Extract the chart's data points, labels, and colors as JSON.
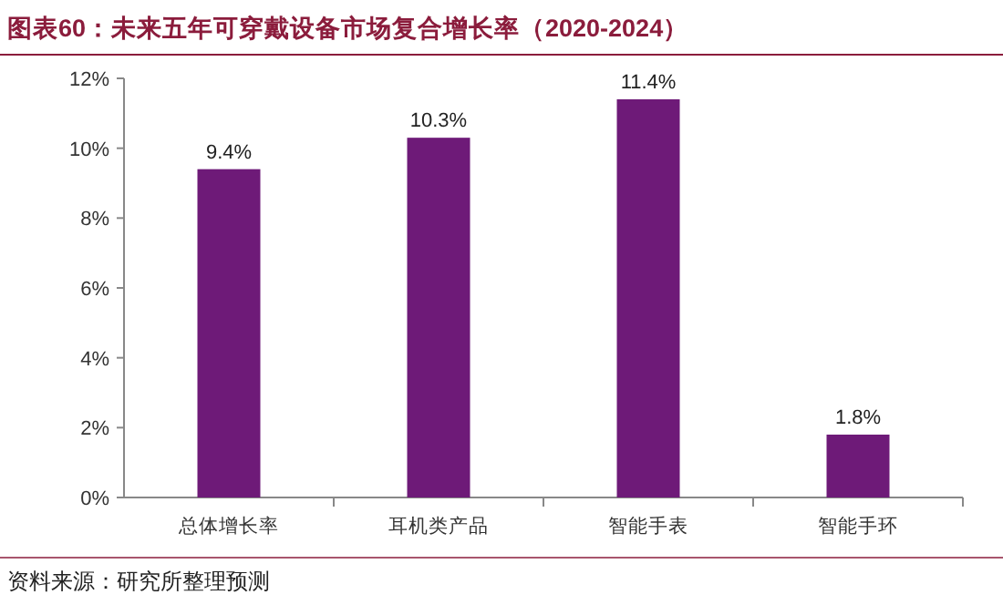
{
  "chart_data": {
    "type": "bar",
    "title": "图表60：未来五年可穿戴设备市场复合增长率（2020-2024）",
    "categories": [
      "总体增长率",
      "耳机类产品",
      "智能手表",
      "智能手环"
    ],
    "values": [
      9.4,
      10.3,
      11.4,
      1.8
    ],
    "color": "#6e1a78",
    "value_labels": [
      "9.4%",
      "10.3%",
      "11.4%",
      "1.8%"
    ],
    "ylim": [
      0,
      12
    ],
    "yticks": [
      {
        "value": 0,
        "label": "0%"
      },
      {
        "value": 2,
        "label": "2%"
      },
      {
        "value": 4,
        "label": "4%"
      },
      {
        "value": 6,
        "label": "6%"
      },
      {
        "value": 8,
        "label": "8%"
      },
      {
        "value": 10,
        "label": "10%"
      },
      {
        "value": 12,
        "label": "12%"
      }
    ],
    "grid": false,
    "annotations": [
      "资料来源：研究所整理预测"
    ]
  }
}
